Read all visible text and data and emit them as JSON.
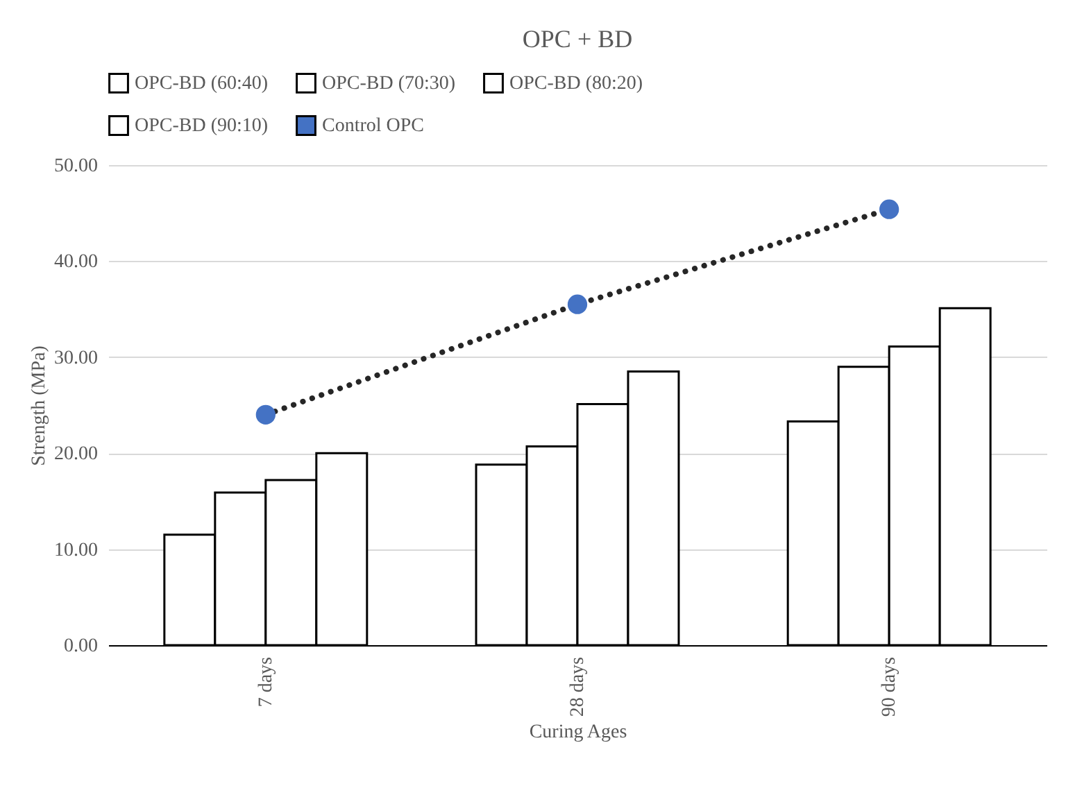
{
  "chart_data": {
    "type": "bar",
    "title": "OPC + BD",
    "xlabel": "Curing Ages",
    "ylabel": "Strength (MPa)",
    "categories": [
      "7 days",
      "28 days",
      "90 days"
    ],
    "series": [
      {
        "name": "OPC-BD (60:40)",
        "color": "#ffffff",
        "values": [
          11.5,
          18.8,
          23.3
        ]
      },
      {
        "name": "OPC-BD (70:30)",
        "color": "#ffffff",
        "values": [
          15.9,
          20.7,
          29.0
        ]
      },
      {
        "name": "OPC-BD (80:20)",
        "color": "#ffffff",
        "values": [
          17.2,
          25.1,
          31.1
        ]
      },
      {
        "name": "OPC-BD (90:10)",
        "color": "#ffffff",
        "values": [
          20.0,
          28.5,
          35.1
        ]
      },
      {
        "name": "Control OPC",
        "type": "line",
        "color": "#4472c4",
        "marker": "circle",
        "line_style": "dotted",
        "values": [
          24.0,
          35.5,
          45.4
        ]
      }
    ],
    "ylim": [
      0,
      50
    ],
    "yticks": [
      {
        "value": 0,
        "label": "0.00"
      },
      {
        "value": 10,
        "label": "10.00"
      },
      {
        "value": 20,
        "label": "20.00"
      },
      {
        "value": 30,
        "label": "30.00"
      },
      {
        "value": 40,
        "label": "40.00"
      },
      {
        "value": 50,
        "label": "50.00"
      }
    ],
    "grid": "y",
    "legend": "top"
  }
}
